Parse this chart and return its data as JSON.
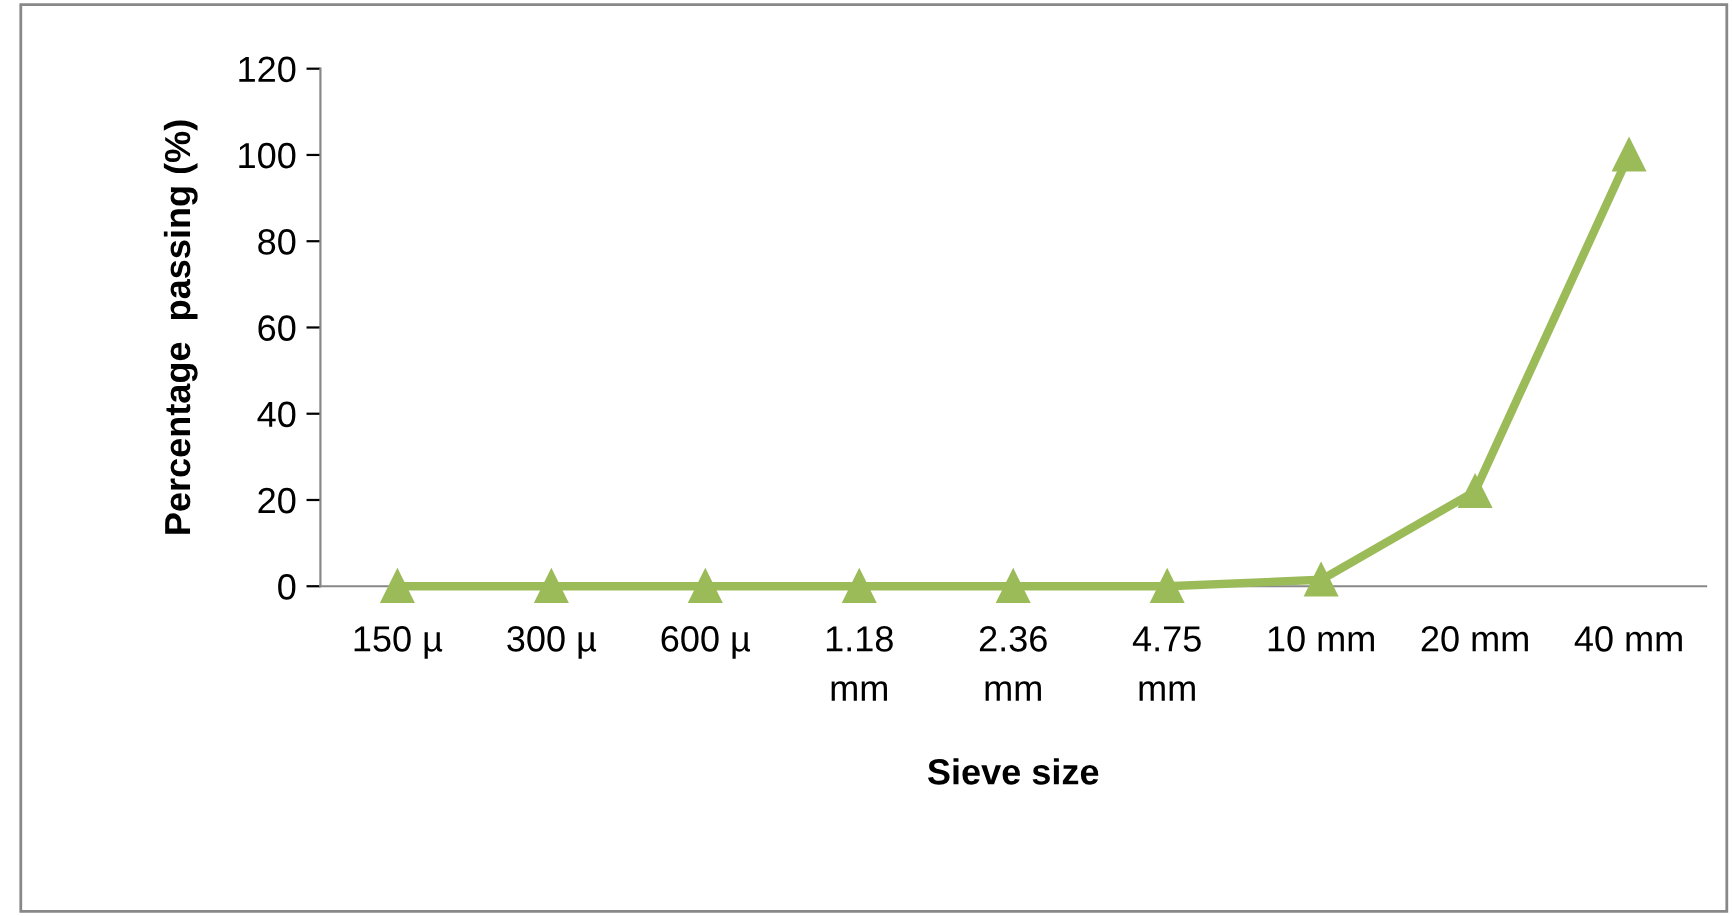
{
  "chart_data": {
    "type": "line",
    "xlabel": "Sieve size",
    "ylabel": "Percentage  passing (%)",
    "categories": [
      "150 µ",
      "300 µ",
      "600 µ",
      "1.18\nmm",
      "2.36\nmm",
      "4.75\nmm",
      "10 mm",
      "20 mm",
      "40 mm"
    ],
    "series": [
      {
        "color": "#9bbb59",
        "values": [
          0,
          0,
          0,
          0,
          0,
          0,
          1.5,
          22,
          100
        ]
      }
    ],
    "ylim": [
      0,
      120
    ],
    "yticks": [
      0,
      20,
      40,
      60,
      80,
      100,
      120
    ],
    "grid": false,
    "legend": false,
    "marker": "triangle",
    "line_style": "solid"
  }
}
